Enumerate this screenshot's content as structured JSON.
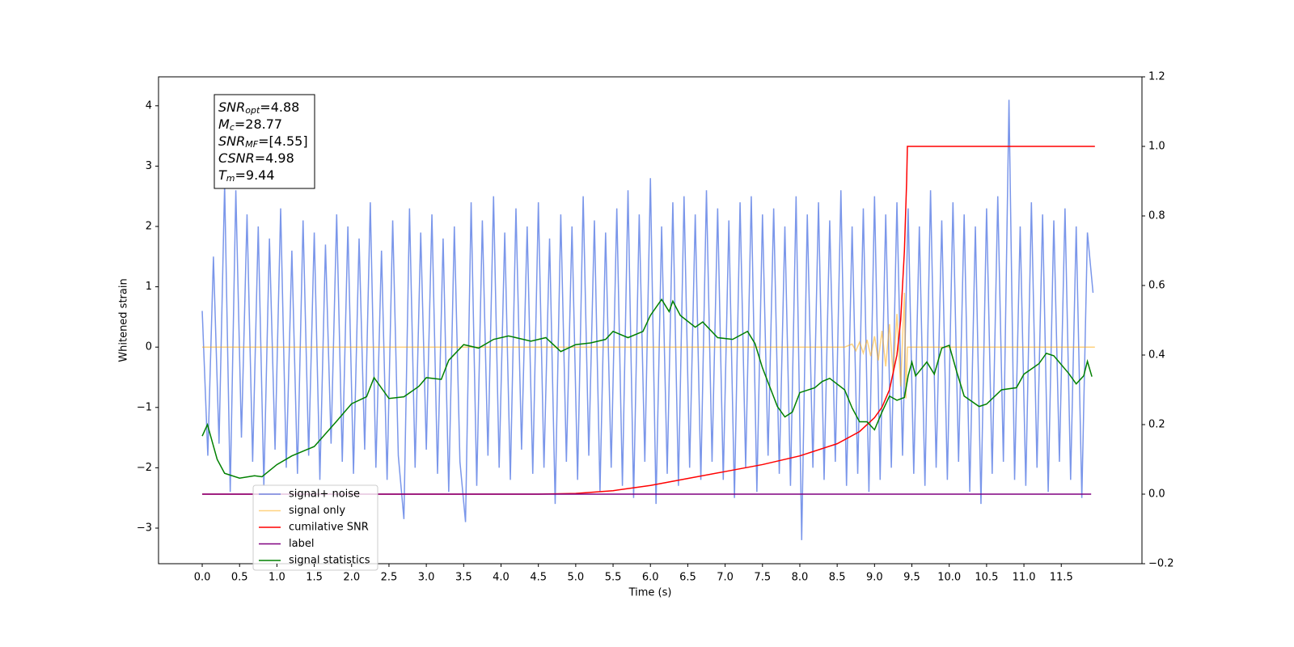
{
  "chart_data": {
    "type": "line",
    "xlabel": "Time (s)",
    "ylabel": "Whitened strain",
    "xlim": [
      -0.585,
      12.58
    ],
    "ylim": [
      -3.59,
      4.48
    ],
    "y2lim": [
      -0.2,
      1.2
    ],
    "xticks": [
      {
        "value": 0,
        "label": "0.0"
      },
      {
        "value": 0.5,
        "label": "0.5"
      },
      {
        "value": 1,
        "label": "1.0"
      },
      {
        "value": 1.5,
        "label": "1.5"
      },
      {
        "value": 2,
        "label": "2.0"
      },
      {
        "value": 2.5,
        "label": "2.5"
      },
      {
        "value": 3,
        "label": "3.0"
      },
      {
        "value": 3.5,
        "label": "3.5"
      },
      {
        "value": 4,
        "label": "4.0"
      },
      {
        "value": 4.5,
        "label": "4.5"
      },
      {
        "value": 5,
        "label": "5.0"
      },
      {
        "value": 5.5,
        "label": "5.5"
      },
      {
        "value": 6,
        "label": "6.0"
      },
      {
        "value": 6.5,
        "label": "6.5"
      },
      {
        "value": 7,
        "label": "7.0"
      },
      {
        "value": 7.5,
        "label": "7.5"
      },
      {
        "value": 8,
        "label": "8.0"
      },
      {
        "value": 8.5,
        "label": "8.5"
      },
      {
        "value": 9,
        "label": "9.0"
      },
      {
        "value": 9.5,
        "label": "9.5"
      },
      {
        "value": 10,
        "label": "10.0"
      },
      {
        "value": 10.5,
        "label": "10.5"
      },
      {
        "value": 11,
        "label": "11.0"
      },
      {
        "value": 11.5,
        "label": "11.5"
      }
    ],
    "yticks": [
      {
        "value": -3,
        "label": "−3"
      },
      {
        "value": -2,
        "label": "−2"
      },
      {
        "value": -1,
        "label": "−1"
      },
      0,
      1,
      2,
      3,
      4
    ],
    "y2ticks": [
      {
        "value": -0.2,
        "label": "−0.2"
      },
      {
        "value": 0,
        "label": "0.0"
      },
      0.2,
      0.4,
      0.6,
      0.8,
      {
        "value": 1,
        "label": "1.0"
      },
      1.2
    ],
    "annotation": [
      {
        "main": "SNR",
        "sub": "opt",
        "rest": "=4.88"
      },
      {
        "main": "M",
        "sub": "c",
        "rest": "=28.77"
      },
      {
        "main": "SNR",
        "sub": "MF",
        "rest": "=[4.55]"
      },
      {
        "main": "CSNR",
        "sub": "",
        "rest": "=4.98"
      },
      {
        "main": "T",
        "sub": "m",
        "rest": "=9.44"
      }
    ],
    "series": [
      {
        "name": "signal+ noise",
        "color": "#4169e1",
        "axis": "y",
        "x": [
          0,
          0.075,
          0.15,
          0.225,
          0.3,
          0.375,
          0.45,
          0.525,
          0.6,
          0.675,
          0.75,
          0.825,
          0.9,
          0.975,
          1.05,
          1.125,
          1.2,
          1.275,
          1.35,
          1.425,
          1.5,
          1.575,
          1.65,
          1.725,
          1.8,
          1.875,
          1.95,
          2.025,
          2.1,
          2.175,
          2.25,
          2.325,
          2.4,
          2.475,
          2.55,
          2.625,
          2.7,
          2.775,
          2.85,
          2.925,
          3,
          3.075,
          3.15,
          3.225,
          3.3,
          3.375,
          3.45,
          3.525,
          3.6,
          3.675,
          3.75,
          3.825,
          3.9,
          3.975,
          4.05,
          4.125,
          4.2,
          4.275,
          4.35,
          4.425,
          4.5,
          4.575,
          4.65,
          4.725,
          4.8,
          4.875,
          4.95,
          5.025,
          5.1,
          5.175,
          5.25,
          5.325,
          5.4,
          5.475,
          5.55,
          5.625,
          5.7,
          5.775,
          5.85,
          5.925,
          6,
          6.075,
          6.15,
          6.225,
          6.3,
          6.375,
          6.45,
          6.525,
          6.6,
          6.675,
          6.75,
          6.825,
          6.9,
          6.975,
          7.05,
          7.125,
          7.2,
          7.275,
          7.35,
          7.425,
          7.5,
          7.575,
          7.65,
          7.725,
          7.8,
          7.875,
          7.95,
          8.025,
          8.1,
          8.175,
          8.25,
          8.325,
          8.4,
          8.475,
          8.55,
          8.625,
          8.7,
          8.775,
          8.85,
          8.925,
          9,
          9.075,
          9.15,
          9.225,
          9.3,
          9.375,
          9.45,
          9.525,
          9.6,
          9.675,
          9.75,
          9.825,
          9.9,
          9.975,
          10.05,
          10.125,
          10.2,
          10.275,
          10.35,
          10.425,
          10.5,
          10.575,
          10.65,
          10.725,
          10.8,
          10.875,
          10.95,
          11.025,
          11.1,
          11.175,
          11.25,
          11.325,
          11.4,
          11.475,
          11.55,
          11.625,
          11.7,
          11.775,
          11.85,
          11.925
        ],
        "values": [
          0.6,
          -1.8,
          1.5,
          -1.6,
          2.7,
          -2.4,
          2.6,
          -1.5,
          2.2,
          -1.9,
          2.0,
          -2.3,
          1.8,
          -1.7,
          2.3,
          -2.0,
          1.6,
          -2.1,
          2.1,
          -1.8,
          1.9,
          -2.2,
          1.7,
          -1.6,
          2.2,
          -1.9,
          2.0,
          -2.1,
          1.8,
          -1.7,
          2.4,
          -2.0,
          1.6,
          -2.2,
          2.1,
          -1.8,
          -2.85,
          2.3,
          -2.0,
          1.9,
          -1.7,
          2.2,
          -2.1,
          1.8,
          -2.4,
          2.0,
          -1.9,
          -2.9,
          2.4,
          -2.3,
          2.1,
          -1.8,
          2.5,
          -2.0,
          1.9,
          -2.2,
          2.3,
          -1.7,
          2.0,
          -2.1,
          2.4,
          -2.0,
          1.8,
          -2.6,
          2.2,
          -1.9,
          2.0,
          -2.2,
          2.5,
          -1.8,
          2.1,
          -2.4,
          1.9,
          -2.0,
          2.3,
          -2.3,
          2.6,
          -2.5,
          2.2,
          -1.9,
          2.8,
          -2.6,
          2.0,
          -2.1,
          2.4,
          -2.3,
          2.5,
          -2.0,
          2.2,
          -2.2,
          2.6,
          -1.9,
          2.3,
          -2.2,
          2.1,
          -2.5,
          2.4,
          -2.0,
          2.5,
          -2.4,
          2.2,
          -1.8,
          2.3,
          -2.1,
          2.0,
          -2.3,
          2.5,
          -3.2,
          2.2,
          -2.0,
          2.4,
          -2.2,
          2.1,
          -1.9,
          2.6,
          -2.3,
          2.0,
          -2.1,
          2.3,
          -2.4,
          2.5,
          -2.2,
          2.2,
          -2.0,
          2.4,
          -1.8,
          2.3,
          -2.1,
          2.0,
          -2.3,
          2.6,
          -2.0,
          2.1,
          -2.2,
          2.4,
          -1.9,
          2.2,
          -2.4,
          2.0,
          -2.6,
          2.3,
          -2.1,
          2.5,
          -1.9,
          4.1,
          -2.2,
          2.0,
          -2.3,
          2.4,
          -2.0,
          2.2,
          -2.4,
          2.1,
          -1.9,
          2.3,
          -2.2,
          2.0,
          -2.5,
          1.9,
          0.9
        ]
      },
      {
        "name": "signal only",
        "color": "#ffa500",
        "axis": "y",
        "x": [
          0,
          8.6,
          8.7,
          8.75,
          8.8,
          8.85,
          8.9,
          8.95,
          9.0,
          9.05,
          9.1,
          9.15,
          9.2,
          9.25,
          9.3,
          9.35,
          9.4,
          9.42,
          9.44,
          11.95
        ],
        "values": [
          0,
          0,
          0.05,
          -0.06,
          0.08,
          -0.1,
          0.12,
          -0.15,
          0.18,
          -0.22,
          0.27,
          -0.32,
          0.38,
          -0.45,
          0.55,
          -0.65,
          0.9,
          -0.85,
          0,
          0
        ]
      },
      {
        "name": "cumilative SNR",
        "color": "#ff0000",
        "axis": "y2",
        "x": [
          0,
          4.5,
          5,
          5.5,
          6,
          6.5,
          7,
          7.5,
          8,
          8.5,
          8.8,
          9,
          9.1,
          9.2,
          9.3,
          9.35,
          9.4,
          9.43,
          9.44,
          11.95
        ],
        "values": [
          0,
          0,
          0.002,
          0.01,
          0.025,
          0.045,
          0.065,
          0.085,
          0.11,
          0.145,
          0.18,
          0.22,
          0.25,
          0.3,
          0.4,
          0.5,
          0.7,
          0.9,
          1.0,
          1.0
        ]
      },
      {
        "name": "label",
        "color": "#800080",
        "axis": "y2",
        "x": [
          0,
          11.9
        ],
        "values": [
          0,
          0
        ]
      },
      {
        "name": "signal statistics",
        "color": "#008000",
        "axis": "y2",
        "x": [
          0,
          0.07,
          0.2,
          0.3,
          0.5,
          0.7,
          0.8,
          1.0,
          1.2,
          1.5,
          1.8,
          2.0,
          2.2,
          2.3,
          2.5,
          2.7,
          2.9,
          3.0,
          3.2,
          3.3,
          3.5,
          3.7,
          3.9,
          4.1,
          4.4,
          4.6,
          4.8,
          5.0,
          5.2,
          5.4,
          5.5,
          5.7,
          5.9,
          6.0,
          6.15,
          6.25,
          6.3,
          6.4,
          6.6,
          6.7,
          6.9,
          7.1,
          7.3,
          7.4,
          7.5,
          7.7,
          7.8,
          7.9,
          8.0,
          8.2,
          8.3,
          8.4,
          8.6,
          8.7,
          8.8,
          8.9,
          9.0,
          9.1,
          9.2,
          9.3,
          9.4,
          9.45,
          9.5,
          9.55,
          9.7,
          9.8,
          9.9,
          10.0,
          10.1,
          10.2,
          10.4,
          10.5,
          10.7,
          10.9,
          11.0,
          11.2,
          11.3,
          11.4,
          11.6,
          11.7,
          11.8,
          11.85,
          11.91
        ],
        "values": [
          0.167,
          0.2,
          0.1,
          0.06,
          0.046,
          0.053,
          0.05,
          0.085,
          0.11,
          0.137,
          0.21,
          0.26,
          0.28,
          0.335,
          0.275,
          0.28,
          0.31,
          0.335,
          0.33,
          0.385,
          0.43,
          0.42,
          0.445,
          0.455,
          0.44,
          0.45,
          0.41,
          0.43,
          0.435,
          0.445,
          0.468,
          0.45,
          0.468,
          0.514,
          0.56,
          0.525,
          0.555,
          0.514,
          0.48,
          0.495,
          0.45,
          0.445,
          0.468,
          0.433,
          0.363,
          0.252,
          0.222,
          0.236,
          0.292,
          0.306,
          0.324,
          0.333,
          0.3,
          0.248,
          0.208,
          0.208,
          0.185,
          0.236,
          0.282,
          0.27,
          0.278,
          0.34,
          0.38,
          0.34,
          0.38,
          0.345,
          0.42,
          0.428,
          0.352,
          0.282,
          0.252,
          0.259,
          0.3,
          0.306,
          0.345,
          0.375,
          0.405,
          0.398,
          0.347,
          0.317,
          0.34,
          0.382,
          0.338
        ]
      }
    ]
  }
}
